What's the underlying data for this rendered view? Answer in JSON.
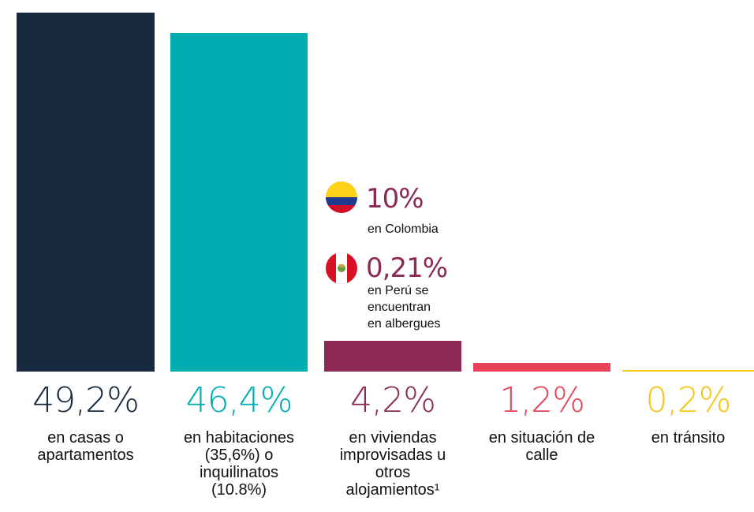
{
  "chart_data": {
    "type": "bar",
    "categories": [
      "en casas o apartamentos",
      "en habitaciones (35,6%) o inquilinatos (10.8%)",
      "en viviendas improvisadas u otros alojamientos¹",
      "en situación de calle",
      "en tránsito"
    ],
    "values": [
      49.2,
      46.4,
      4.2,
      1.2,
      0.2
    ],
    "value_labels": [
      "49,2%",
      "46,4%",
      "4,2%",
      "1,2%",
      "0,2%"
    ],
    "colors": [
      "#172a3f",
      "#00adb0",
      "#8c2a55",
      "#e9435a",
      "#f5c518"
    ],
    "annotations": [
      {
        "label": "10%",
        "text": "en Colombia"
      },
      {
        "label": "0,21%",
        "text": "en Perú se encuentran en albergues"
      }
    ]
  }
}
